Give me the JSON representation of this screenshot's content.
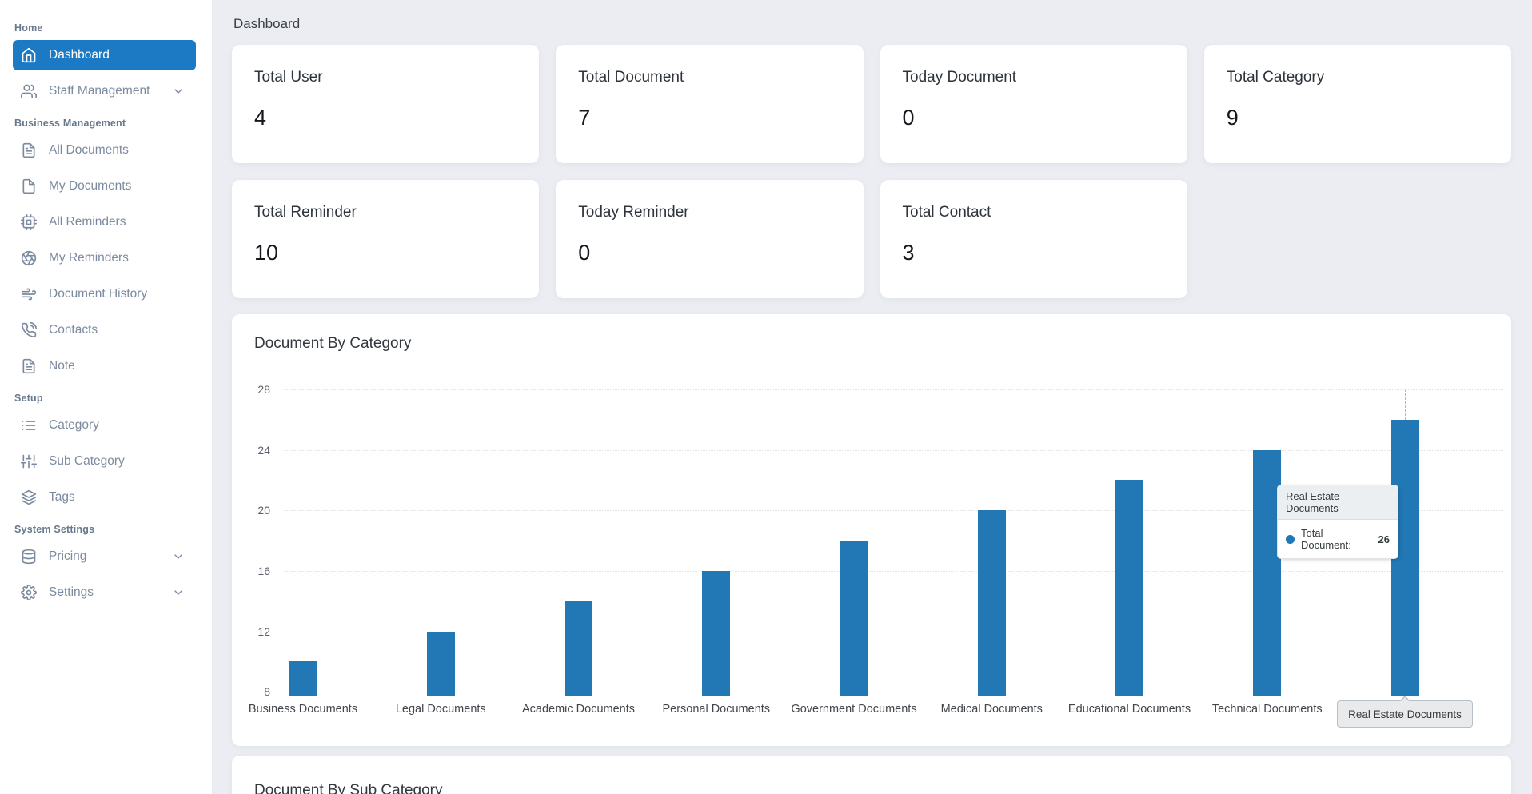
{
  "page": {
    "title": "Dashboard"
  },
  "colors": {
    "accent": "#1b7ac3",
    "bar": "#2178b4",
    "sidebar_bg": "#ffffff",
    "page_bg": "#ebedf2"
  },
  "sidebar": {
    "sections": [
      {
        "label": "Home",
        "items": [
          {
            "label": "Dashboard",
            "icon": "home",
            "active": true,
            "chevron": false
          },
          {
            "label": "Staff Management",
            "icon": "users",
            "active": false,
            "chevron": true
          }
        ]
      },
      {
        "label": "Business Management",
        "items": [
          {
            "label": "All Documents",
            "icon": "file-text",
            "active": false,
            "chevron": false
          },
          {
            "label": "My Documents",
            "icon": "file",
            "active": false,
            "chevron": false
          },
          {
            "label": "All Reminders",
            "icon": "cpu",
            "active": false,
            "chevron": false
          },
          {
            "label": "My Reminders",
            "icon": "aperture",
            "active": false,
            "chevron": false
          },
          {
            "label": "Document History",
            "icon": "wind",
            "active": false,
            "chevron": false
          },
          {
            "label": "Contacts",
            "icon": "phone-call",
            "active": false,
            "chevron": false
          },
          {
            "label": "Note",
            "icon": "file-text",
            "active": false,
            "chevron": false
          }
        ]
      },
      {
        "label": "Setup",
        "items": [
          {
            "label": "Category",
            "icon": "list",
            "active": false,
            "chevron": false
          },
          {
            "label": "Sub Category",
            "icon": "sliders",
            "active": false,
            "chevron": false
          },
          {
            "label": "Tags",
            "icon": "layers",
            "active": false,
            "chevron": false
          }
        ]
      },
      {
        "label": "System Settings",
        "items": [
          {
            "label": "Pricing",
            "icon": "database",
            "active": false,
            "chevron": true
          },
          {
            "label": "Settings",
            "icon": "gear",
            "active": false,
            "chevron": true
          }
        ]
      }
    ]
  },
  "stats": {
    "cards": [
      {
        "label": "Total User",
        "value": "4"
      },
      {
        "label": "Total Document",
        "value": "7"
      },
      {
        "label": "Today Document",
        "value": "0"
      },
      {
        "label": "Total Category",
        "value": "9"
      },
      {
        "label": "Total Reminder",
        "value": "10"
      },
      {
        "label": "Today Reminder",
        "value": "0"
      },
      {
        "label": "Total Contact",
        "value": "3"
      }
    ]
  },
  "chart_data": {
    "type": "bar",
    "title": "Document By Category",
    "categories": [
      "Business Documents",
      "Legal Documents",
      "Academic Documents",
      "Personal Documents",
      "Government Documents",
      "Medical Documents",
      "Educational Documents",
      "Technical Documents",
      "Real Estate Documents"
    ],
    "series": [
      {
        "name": "Total Document",
        "values": [
          10,
          12,
          14,
          16,
          18,
          20,
          22,
          24,
          26
        ]
      }
    ],
    "yticks": [
      28,
      24,
      20,
      16,
      12,
      8
    ],
    "ylim": [
      8,
      28
    ],
    "grid": "horizontal-dotted",
    "legend": "none",
    "bar_color": "#2178b4",
    "highlight": {
      "category_index": 8,
      "tooltip_title": "Real Estate Documents",
      "tooltip_series_label": "Total Document:",
      "tooltip_value": "26",
      "xaxis_label": "Real Estate Documents"
    }
  },
  "sub_category_card": {
    "title": "Document By Sub Category"
  }
}
